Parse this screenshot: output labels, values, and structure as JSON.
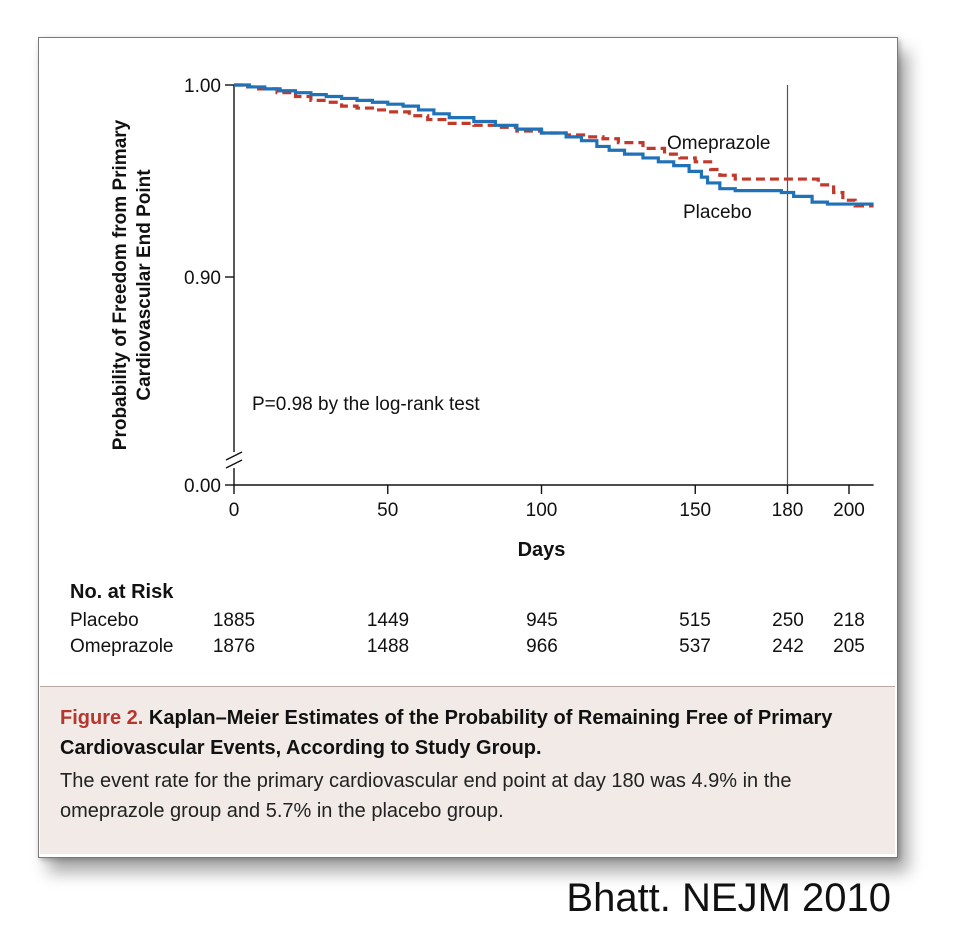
{
  "chart_data": {
    "type": "line",
    "xlabel": "Days",
    "ylabel_lines": [
      "Probability of Freedom from Primary",
      "Cardiovascular End Point"
    ],
    "x_ticks": [
      0,
      50,
      100,
      150,
      180,
      200
    ],
    "y_ticks": [
      {
        "value": 1.0,
        "label": "1.00"
      },
      {
        "value": 0.9,
        "label": "0.90"
      },
      {
        "value": 0.0,
        "label": "0.00"
      }
    ],
    "xlim": [
      0,
      208
    ],
    "ylim_broken": {
      "upper": [
        0.79,
        1.0
      ],
      "lower_shown": 0.0
    },
    "reference_line_x": 180,
    "annotation": "P=0.98 by the log-rank test",
    "series": [
      {
        "name": "Omeprazole",
        "color": "#c0392b",
        "dash": "dashed",
        "x": [
          0,
          3,
          8,
          14,
          20,
          25,
          30,
          35,
          40,
          45,
          50,
          57,
          63,
          70,
          78,
          85,
          92,
          100,
          108,
          115,
          120,
          125,
          133,
          140,
          145,
          150,
          155,
          158,
          163,
          170,
          178,
          183,
          190,
          195,
          198,
          202,
          208
        ],
        "y": [
          1.0,
          0.999,
          0.998,
          0.996,
          0.994,
          0.992,
          0.991,
          0.989,
          0.988,
          0.987,
          0.986,
          0.984,
          0.982,
          0.98,
          0.979,
          0.978,
          0.976,
          0.975,
          0.974,
          0.973,
          0.972,
          0.97,
          0.967,
          0.964,
          0.962,
          0.96,
          0.956,
          0.953,
          0.951,
          0.951,
          0.951,
          0.951,
          0.948,
          0.944,
          0.94,
          0.937,
          0.937
        ]
      },
      {
        "name": "Placebo",
        "color": "#1f72b8",
        "dash": "solid",
        "x": [
          0,
          5,
          10,
          15,
          20,
          25,
          30,
          35,
          40,
          45,
          50,
          55,
          60,
          65,
          70,
          78,
          85,
          92,
          100,
          108,
          113,
          118,
          122,
          127,
          133,
          138,
          143,
          148,
          152,
          154,
          158,
          163,
          170,
          178,
          182,
          188,
          193,
          200,
          208
        ],
        "y": [
          1.0,
          0.999,
          0.998,
          0.997,
          0.996,
          0.995,
          0.994,
          0.993,
          0.992,
          0.991,
          0.99,
          0.989,
          0.987,
          0.985,
          0.983,
          0.981,
          0.979,
          0.977,
          0.975,
          0.973,
          0.971,
          0.968,
          0.966,
          0.964,
          0.962,
          0.96,
          0.958,
          0.955,
          0.952,
          0.949,
          0.946,
          0.945,
          0.945,
          0.944,
          0.942,
          0.939,
          0.938,
          0.938,
          0.938
        ]
      }
    ],
    "series_labels": [
      {
        "text": "Omeprazole",
        "series": "Omeprazole"
      },
      {
        "text": "Placebo",
        "series": "Placebo"
      }
    ],
    "risk_table": {
      "title": "No. at Risk",
      "days": [
        0,
        50,
        100,
        150,
        180,
        200
      ],
      "rows": [
        {
          "label": "Placebo",
          "values": [
            "1885",
            "1449",
            "945",
            "515",
            "250",
            "218"
          ]
        },
        {
          "label": "Omeprazole",
          "values": [
            "1876",
            "1488",
            "966",
            "537",
            "242",
            "205"
          ]
        }
      ]
    }
  },
  "caption": {
    "label": "Figure 2.",
    "title": "Kaplan–Meier Estimates of the Probability of Remaining Free of Primary Cardiovascular Events, According to Study Group.",
    "body": "The event rate for the primary cardiovascular end point at day 180 was 4.9% in the omeprazole group and 5.7% in the placebo group."
  },
  "credit": "Bhatt. NEJM 2010"
}
